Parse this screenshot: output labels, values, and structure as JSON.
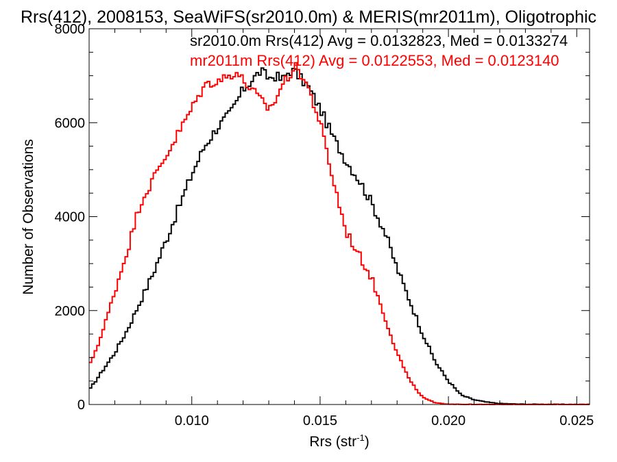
{
  "chart_data": {
    "type": "line",
    "title": "Rrs(412), 2008153, SeaWiFS(sr2010.0m) & MERIS(mr2011m), Oligotrophic",
    "xlabel": "Rrs (str",
    "xlabel_sup": "-1",
    "xlabel_end": ")",
    "ylabel": "Number of Observations",
    "xlim": [
      0.006,
      0.0255
    ],
    "ylim": [
      0,
      8000
    ],
    "xticks": [
      0.01,
      0.015,
      0.02,
      0.025
    ],
    "xtick_labels": [
      "0.010",
      "0.015",
      "0.020",
      "0.025"
    ],
    "yticks": [
      0,
      2000,
      4000,
      6000,
      8000
    ],
    "ytick_labels": [
      "0",
      "2000",
      "4000",
      "6000",
      "8000"
    ],
    "legend_position": "top-right",
    "grid": false,
    "series": [
      {
        "name": "sr2010.0m",
        "legend": "sr2010.0m Rrs(412) Avg = 0.0132823, Med = 0.0133274",
        "color": "#000000",
        "x": [
          0.006,
          0.0065,
          0.007,
          0.0075,
          0.008,
          0.0085,
          0.009,
          0.0095,
          0.01,
          0.0105,
          0.011,
          0.0115,
          0.012,
          0.0125,
          0.0127,
          0.013,
          0.0133,
          0.0135,
          0.0138,
          0.014,
          0.0143,
          0.0145,
          0.015,
          0.0155,
          0.016,
          0.0165,
          0.017,
          0.0175,
          0.018,
          0.0185,
          0.019,
          0.0195,
          0.02,
          0.0205,
          0.021,
          0.0215,
          0.022,
          0.023,
          0.0255
        ],
        "y": [
          300,
          700,
          1100,
          1600,
          2200,
          2800,
          3500,
          4200,
          4900,
          5500,
          5900,
          6200,
          6700,
          7000,
          7100,
          6950,
          7000,
          6900,
          7100,
          7100,
          6900,
          6800,
          6300,
          5700,
          5200,
          4800,
          4300,
          3700,
          2900,
          2200,
          1500,
          900,
          500,
          200,
          100,
          50,
          20,
          5,
          0
        ]
      },
      {
        "name": "mr2011m",
        "legend": "mr2011m Rrs(412) Avg = 0.0122553, Med = 0.0123140",
        "color": "#ff0000",
        "x": [
          0.006,
          0.0065,
          0.007,
          0.0075,
          0.008,
          0.0085,
          0.009,
          0.0095,
          0.01,
          0.0105,
          0.011,
          0.0115,
          0.0117,
          0.012,
          0.0125,
          0.0128,
          0.013,
          0.0133,
          0.0135,
          0.0138,
          0.014,
          0.0143,
          0.0145,
          0.015,
          0.0155,
          0.016,
          0.0165,
          0.017,
          0.0175,
          0.018,
          0.0185,
          0.019,
          0.0195,
          0.02,
          0.021,
          0.0255
        ],
        "y": [
          800,
          1500,
          2400,
          3300,
          4300,
          4800,
          5300,
          5800,
          6300,
          6800,
          6900,
          7000,
          7100,
          6900,
          6600,
          6400,
          6300,
          6500,
          6800,
          7000,
          7200,
          7000,
          6800,
          6000,
          4800,
          3700,
          3200,
          2700,
          1900,
          1100,
          500,
          150,
          30,
          10,
          0,
          0
        ]
      }
    ]
  }
}
